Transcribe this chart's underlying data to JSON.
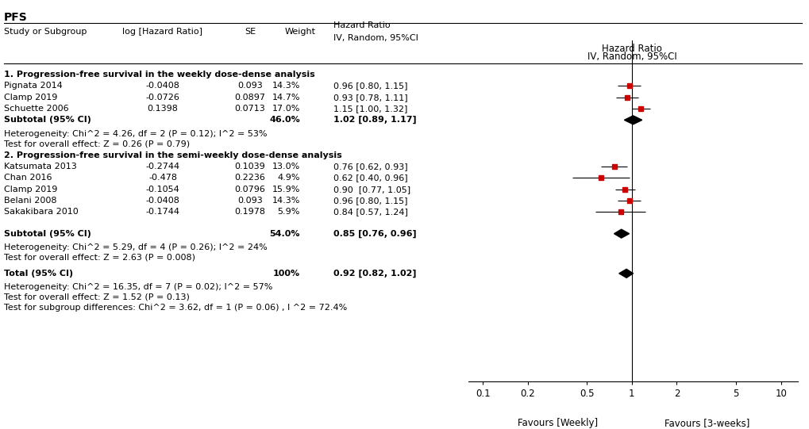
{
  "title": "PFS",
  "section1_label": "1. Progression-free survival in the weekly dose-dense analysis",
  "section1_studies": [
    {
      "name": "Pignata 2014",
      "log_hr": "-0.0408",
      "se": "0.093",
      "weight": "14.3%",
      "hr": 0.96,
      "ci_lo": 0.8,
      "ci_hi": 1.15,
      "hr_text": "0.96 [0.80, 1.15]"
    },
    {
      "name": "Clamp 2019",
      "log_hr": "-0.0726",
      "se": "0.0897",
      "weight": "14.7%",
      "hr": 0.93,
      "ci_lo": 0.78,
      "ci_hi": 1.11,
      "hr_text": "0.93 [0.78, 1.11]"
    },
    {
      "name": "Schuette 2006",
      "log_hr": "0.1398",
      "se": "0.0713",
      "weight": "17.0%",
      "hr": 1.15,
      "ci_lo": 1.0,
      "ci_hi": 1.32,
      "hr_text": "1.15 [1.00, 1.32]"
    }
  ],
  "section1_subtotal": {
    "weight": "46.0%",
    "hr": 1.02,
    "ci_lo": 0.89,
    "ci_hi": 1.17,
    "hr_text": "1.02 [0.89, 1.17]"
  },
  "section1_het": "Heterogeneity: Chi^2 = 4.26, df = 2 (P = 0.12); I^2 = 53%",
  "section1_effect": "Test for overall effect: Z = 0.26 (P = 0.79)",
  "section2_label": "2. Progression-free survival in the semi-weekly dose-dense analysis",
  "section2_studies": [
    {
      "name": "Katsumata 2013",
      "log_hr": "-0.2744",
      "se": "0.1039",
      "weight": "13.0%",
      "hr": 0.76,
      "ci_lo": 0.62,
      "ci_hi": 0.93,
      "hr_text": "0.76 [0.62, 0.93]"
    },
    {
      "name": "Chan 2016",
      "log_hr": "-0.478",
      "se": "0.2236",
      "weight": "4.9%",
      "hr": 0.62,
      "ci_lo": 0.4,
      "ci_hi": 0.96,
      "hr_text": "0.62 [0.40, 0.96]"
    },
    {
      "name": "Clamp 2019",
      "log_hr": "-0.1054",
      "se": "0.0796",
      "weight": "15.9%",
      "hr": 0.9,
      "ci_lo": 0.77,
      "ci_hi": 1.05,
      "hr_text": "0.90  [0.77, 1.05]"
    },
    {
      "name": "Belani 2008",
      "log_hr": "-0.0408",
      "se": "0.093",
      "weight": "14.3%",
      "hr": 0.96,
      "ci_lo": 0.8,
      "ci_hi": 1.15,
      "hr_text": "0.96 [0.80, 1.15]"
    },
    {
      "name": "Sakakibara 2010",
      "log_hr": "-0.1744",
      "se": "0.1978",
      "weight": "5.9%",
      "hr": 0.84,
      "ci_lo": 0.57,
      "ci_hi": 1.24,
      "hr_text": "0.84 [0.57, 1.24]"
    }
  ],
  "section2_subtotal": {
    "weight": "54.0%",
    "hr": 0.85,
    "ci_lo": 0.76,
    "ci_hi": 0.96,
    "hr_text": "0.85 [0.76, 0.96]"
  },
  "section2_het": "Heterogeneity: Chi^2 = 5.29, df = 4 (P = 0.26); I^2 = 24%",
  "section2_effect": "Test for overall effect: Z = 2.63 (P = 0.008)",
  "total": {
    "weight": "100%",
    "hr": 0.92,
    "ci_lo": 0.82,
    "ci_hi": 1.02,
    "hr_text": "0.92 [0.82, 1.02]"
  },
  "total_het": "Heterogeneity: Chi^2 = 16.35, df = 7 (P = 0.02); I^2 = 57%",
  "total_effect": "Test for overall effect: Z = 1.52 (P = 0.13)",
  "subgroup_diff": "Test for subgroup differences: Chi^2 = 3.62, df = 1 (P = 0.06) , I ^2 = 72.4%",
  "x_ticks": [
    0.1,
    0.2,
    0.5,
    1.0,
    2.0,
    5.0,
    10.0
  ],
  "x_tick_labels": [
    "0.1",
    "0.2",
    "0.5",
    "1",
    "2",
    "5",
    "10"
  ],
  "x_label_left": "Favours [Weekly]",
  "x_label_right": "Favours [3-weeks]",
  "study_color": "#CC0000",
  "diamond_color": "#000000",
  "line_color": "#000000",
  "bg_color": "#FFFFFF"
}
